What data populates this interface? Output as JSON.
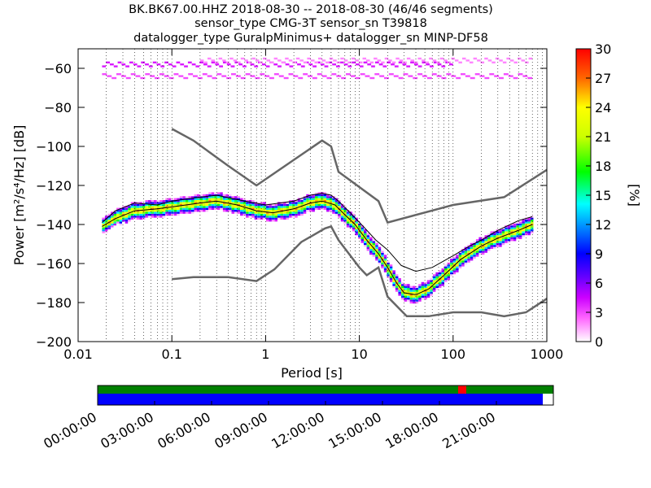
{
  "title_lines": [
    "BK.BK67.00.HHZ   2018-08-30 -- 2018-08-30  (46/46 segments)",
    "sensor_type CMG-3T sensor_sn T39818",
    "datalogger_type GuralpMinimus+ datalogger_sn MINP-DF58"
  ],
  "colorbar": {
    "label": "[%]",
    "ticks": [
      "0",
      "3",
      "6",
      "9",
      "12",
      "15",
      "18",
      "21",
      "24",
      "27",
      "30"
    ]
  },
  "timeline": {
    "ticks": [
      "00:00:00",
      "03:00:00",
      "06:00:00",
      "09:00:00",
      "12:00:00",
      "15:00:00",
      "18:00:00",
      "21:00:00"
    ],
    "colors": {
      "top": "#008000",
      "bottom": "#0000ff",
      "gap": "#ff0000"
    }
  },
  "chart_data": {
    "type": "heatmap",
    "xlabel": "Period [s]",
    "ylabel": "Power [m²/s⁴/Hz] [dB]",
    "x_scale": "log",
    "xlim": [
      0.01,
      1000
    ],
    "ylim": [
      -200,
      -50
    ],
    "x_ticks": [
      "0.01",
      "0.1",
      "1",
      "10",
      "100",
      "1000"
    ],
    "y_ticks": [
      "−200",
      "−180",
      "−160",
      "−140",
      "−120",
      "−100",
      "−80",
      "−60"
    ],
    "y_tick_values": [
      -200,
      -180,
      -160,
      -140,
      -120,
      -100,
      -80,
      -60
    ],
    "x_tick_values": [
      0.01,
      0.1,
      1,
      10,
      100,
      1000
    ],
    "colorbar_range": [
      0,
      30
    ],
    "nhnm": [
      [
        0.1,
        -91
      ],
      [
        0.17,
        -97
      ],
      [
        0.4,
        -110
      ],
      [
        0.8,
        -120
      ],
      [
        4.0,
        -97
      ],
      [
        5.0,
        -100
      ],
      [
        6.0,
        -113
      ],
      [
        16,
        -128
      ],
      [
        20,
        -139
      ],
      [
        100,
        -130
      ],
      [
        350,
        -126
      ],
      [
        1000,
        -112
      ]
    ],
    "nlnm": [
      [
        0.1,
        -168
      ],
      [
        0.17,
        -167
      ],
      [
        0.4,
        -167
      ],
      [
        0.8,
        -169
      ],
      [
        1.24,
        -163
      ],
      [
        2.4,
        -149
      ],
      [
        4.3,
        -142
      ],
      [
        5.0,
        -141
      ],
      [
        6.0,
        -148
      ],
      [
        10,
        -162
      ],
      [
        12,
        -166
      ],
      [
        16,
        -162
      ],
      [
        20,
        -177
      ],
      [
        32,
        -187
      ],
      [
        55,
        -187
      ],
      [
        100,
        -185
      ],
      [
        200,
        -185
      ],
      [
        350,
        -187
      ],
      [
        600,
        -185
      ],
      [
        1000,
        -178
      ]
    ],
    "mode_line": [
      [
        0.018,
        -141
      ],
      [
        0.025,
        -137
      ],
      [
        0.04,
        -133
      ],
      [
        0.07,
        -132
      ],
      [
        0.1,
        -131
      ],
      [
        0.2,
        -129
      ],
      [
        0.3,
        -128
      ],
      [
        0.5,
        -130
      ],
      [
        0.8,
        -133
      ],
      [
        1.2,
        -134
      ],
      [
        2.0,
        -132
      ],
      [
        3.0,
        -129
      ],
      [
        4.0,
        -128
      ],
      [
        5.5,
        -130
      ],
      [
        7.0,
        -135
      ],
      [
        9.0,
        -140
      ],
      [
        12,
        -148
      ],
      [
        16,
        -155
      ],
      [
        20,
        -162
      ],
      [
        25,
        -170
      ],
      [
        30,
        -175
      ],
      [
        40,
        -176
      ],
      [
        55,
        -173
      ],
      [
        80,
        -166
      ],
      [
        120,
        -158
      ],
      [
        200,
        -151
      ],
      [
        300,
        -147
      ],
      [
        500,
        -143
      ],
      [
        700,
        -140
      ]
    ],
    "upper_line": [
      [
        0.018,
        -139
      ],
      [
        0.025,
        -133
      ],
      [
        0.04,
        -129
      ],
      [
        0.07,
        -130
      ],
      [
        0.1,
        -128
      ],
      [
        0.2,
        -126
      ],
      [
        0.3,
        -125
      ],
      [
        0.6,
        -128
      ],
      [
        1.0,
        -130
      ],
      [
        2.0,
        -128
      ],
      [
        3.0,
        -125
      ],
      [
        4.0,
        -124
      ],
      [
        5.0,
        -125
      ],
      [
        6.0,
        -128
      ],
      [
        8.0,
        -134
      ],
      [
        11,
        -141
      ],
      [
        15,
        -148
      ],
      [
        20,
        -153
      ],
      [
        28,
        -161
      ],
      [
        40,
        -164
      ],
      [
        60,
        -162
      ],
      [
        100,
        -156
      ],
      [
        150,
        -151
      ],
      [
        200,
        -148
      ],
      [
        300,
        -143
      ],
      [
        500,
        -138
      ],
      [
        700,
        -136
      ]
    ]
  }
}
